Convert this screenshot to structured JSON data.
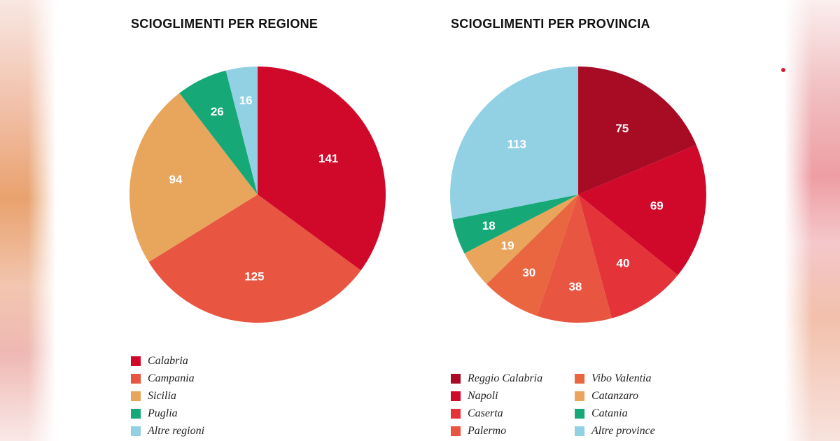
{
  "chart_data": [
    {
      "type": "pie",
      "title": "SCIOGLIMENTI PER REGIONE",
      "labels": [
        "Calabria",
        "Campania",
        "Sicilia",
        "Puglia",
        "Altre regioni"
      ],
      "values": [
        141,
        125,
        94,
        26,
        16
      ],
      "colors": [
        "#d0092b",
        "#e85540",
        "#e7a65c",
        "#17a878",
        "#92d1e4"
      ],
      "legend": [
        "Calabria",
        "Campania",
        "Sicilia",
        "Puglia",
        "Altre regioni"
      ]
    },
    {
      "type": "pie",
      "title": "SCIOGLIMENTI PER PROVINCIA",
      "labels": [
        "Reggio Calabria",
        "Napoli",
        "Caserta",
        "Palermo",
        "Vibo Valentia",
        "Catanzaro",
        "Catania",
        "Altre province"
      ],
      "values": [
        75,
        69,
        40,
        38,
        30,
        19,
        18,
        113
      ],
      "colors": [
        "#a80c25",
        "#d0092b",
        "#e4343a",
        "#e85540",
        "#ea6640",
        "#e9a55c",
        "#17a878",
        "#92d1e4"
      ],
      "legend": [
        "Reggio Calabria",
        "Napoli",
        "Caserta",
        "Palermo",
        "Vibo Valentia",
        "Catanzaro",
        "Catania",
        "Altre province"
      ]
    }
  ]
}
